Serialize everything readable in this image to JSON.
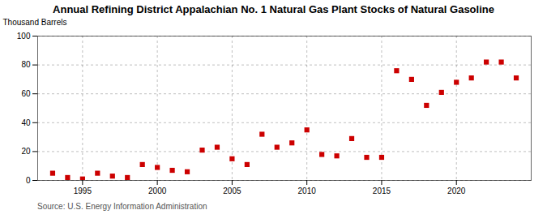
{
  "chart_data": {
    "type": "scatter",
    "title": "Annual Refining District Appalachian No. 1 Natural Gas Plant Stocks of Natural Gasoline",
    "ylabel": "Thousand Barrels",
    "source": "Source: U.S. Energy Information Administration",
    "x": [
      1993,
      1994,
      1995,
      1996,
      1997,
      1998,
      1999,
      2000,
      2001,
      2002,
      2003,
      2004,
      2005,
      2006,
      2007,
      2008,
      2009,
      2010,
      2011,
      2012,
      2013,
      2014,
      2015,
      2016,
      2017,
      2018,
      2019,
      2020,
      2021,
      2022,
      2023,
      2024
    ],
    "values": [
      5,
      2,
      1,
      5,
      3,
      2,
      11,
      9,
      7,
      6,
      21,
      23,
      15,
      11,
      32,
      23,
      26,
      35,
      18,
      17,
      29,
      16,
      16,
      76,
      70,
      52,
      61,
      68,
      71,
      82,
      82,
      71
    ],
    "color": "#cc0000",
    "marker": "square",
    "xlim": [
      1992,
      2025
    ],
    "xticks": [
      1995,
      2000,
      2005,
      2010,
      2015,
      2020
    ],
    "ylim": [
      0,
      100
    ],
    "yticks": [
      0,
      20,
      40,
      60,
      80,
      100
    ],
    "grid": true
  }
}
